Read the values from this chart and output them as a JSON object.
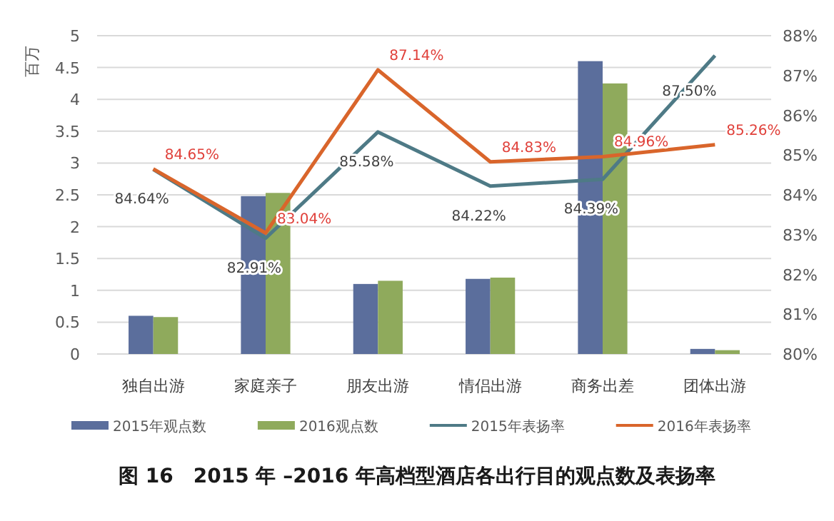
{
  "chart_data": {
    "type": "bar",
    "title": "图 16　2015 年 –2016 年高档型酒店各出行目的观点数及表扬率",
    "ylabel": "百万",
    "categories": [
      "独自出游",
      "家庭亲子",
      "朋友出游",
      "情侣出游",
      "商务出差",
      "团体出游"
    ],
    "series": [
      {
        "name": "2015年观点数",
        "color": "#5b6e9c",
        "values": [
          0.6,
          2.48,
          1.1,
          1.18,
          4.6,
          0.08
        ]
      },
      {
        "name": "2016观点数",
        "color": "#8faa5c",
        "values": [
          0.58,
          2.53,
          1.15,
          1.2,
          4.25,
          0.06
        ]
      },
      {
        "name": "2015年表扬率",
        "type": "line",
        "axis": "y2",
        "color": "#4e7a86",
        "values": [
          84.64,
          82.91,
          85.58,
          84.22,
          84.39,
          87.5
        ],
        "value_labels": [
          "84.64%",
          "82.91%",
          "85.58%",
          "84.22%",
          "84.39%",
          "87.50%"
        ]
      },
      {
        "name": "2016年表扬率",
        "type": "line",
        "axis": "y2",
        "color": "#d9652b",
        "values": [
          84.65,
          83.04,
          87.14,
          84.83,
          84.96,
          85.26
        ],
        "value_labels": [
          "84.65%",
          "83.04%",
          "87.14%",
          "84.83%",
          "84.96%",
          "85.26%"
        ]
      }
    ],
    "ylim": [
      0,
      5
    ],
    "yticks": [
      0,
      0.5,
      1,
      1.5,
      2,
      2.5,
      3,
      3.5,
      4,
      4.5,
      5
    ],
    "y2lim": [
      80,
      88
    ],
    "y2ticks": [
      {
        "value": 80,
        "label": "80%"
      },
      {
        "value": 81,
        "label": "81%"
      },
      {
        "value": 82,
        "label": "82%"
      },
      {
        "value": 83,
        "label": "83%"
      },
      {
        "value": 84,
        "label": "84%"
      },
      {
        "value": 85,
        "label": "85%"
      },
      {
        "value": 86,
        "label": "86%"
      },
      {
        "value": 87,
        "label": "87%"
      },
      {
        "value": 88,
        "label": "88%"
      }
    ],
    "grid": "y",
    "legend": "bottom"
  }
}
